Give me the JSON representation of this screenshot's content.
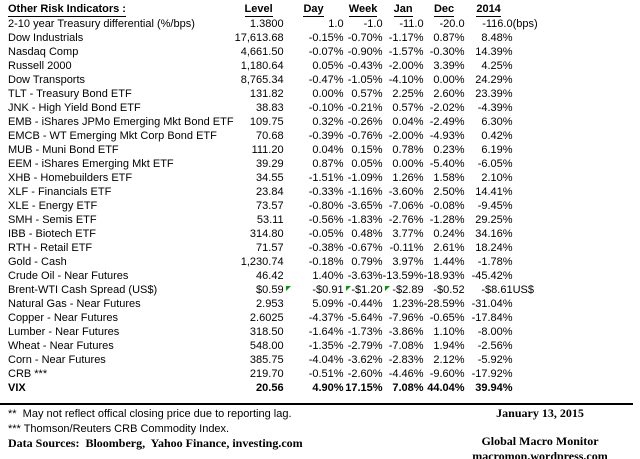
{
  "table": {
    "title": "Other Risk Indicators :",
    "columns": [
      "Level",
      "Day",
      "Week",
      "Jan",
      "Dec",
      "2014"
    ],
    "rows": [
      {
        "label": "2-10 year Treasury differential (%/bps)",
        "values": [
          "1.3800",
          "1.0",
          "-1.0",
          "-11.0",
          "-20.0",
          "-116.0"
        ],
        "note": "(bps)",
        "plain_numbers": true
      },
      {
        "label": "Dow Industrials",
        "values": [
          "17,613.68",
          "-0.15%",
          "-0.70%",
          "-1.17%",
          "0.87%",
          "8.48%"
        ],
        "note": ""
      },
      {
        "label": "Nasdaq Comp",
        "values": [
          "4,661.50",
          "-0.07%",
          "-0.90%",
          "-1.57%",
          "-0.30%",
          "14.39%"
        ],
        "note": ""
      },
      {
        "label": "Russell 2000",
        "values": [
          "1,180.64",
          "0.05%",
          "-0.43%",
          "-2.00%",
          "3.39%",
          "4.25%"
        ],
        "note": ""
      },
      {
        "label": "Dow Transports",
        "values": [
          "8,765.34",
          "-0.47%",
          "-1.05%",
          "-4.10%",
          "0.00%",
          "24.29%"
        ],
        "note": ""
      },
      {
        "label": "TLT - Treasury Bond ETF",
        "values": [
          "131.82",
          "0.00%",
          "0.57%",
          "2.25%",
          "2.60%",
          "23.39%"
        ],
        "note": ""
      },
      {
        "label": "JNK - High Yield Bond ETF",
        "values": [
          "38.83",
          "-0.10%",
          "-0.21%",
          "0.57%",
          "-2.02%",
          "-4.39%"
        ],
        "note": ""
      },
      {
        "label": "EMB - iShares JPMo Emerging Mkt Bond ETF",
        "values": [
          "109.75",
          "0.32%",
          "-0.26%",
          "0.04%",
          "-2.49%",
          "6.30%"
        ],
        "note": ""
      },
      {
        "label": "EMCB - WT Emerging Mkt Corp Bond ETF",
        "values": [
          "70.68",
          "-0.39%",
          "-0.76%",
          "-2.00%",
          "-4.93%",
          "0.42%"
        ],
        "note": ""
      },
      {
        "label": "MUB - Muni Bond ETF",
        "values": [
          "111.20",
          "0.04%",
          "0.15%",
          "0.78%",
          "0.23%",
          "6.19%"
        ],
        "note": ""
      },
      {
        "label": "EEM - iShares Emerging Mkt ETF",
        "values": [
          "39.29",
          "0.87%",
          "0.05%",
          "0.00%",
          "-5.40%",
          "-6.05%"
        ],
        "note": ""
      },
      {
        "label": "XHB - Homebuilders ETF",
        "values": [
          "34.55",
          "-1.51%",
          "-1.09%",
          "1.26%",
          "1.58%",
          "2.10%"
        ],
        "note": ""
      },
      {
        "label": "XLF - Financials ETF",
        "values": [
          "23.84",
          "-0.33%",
          "-1.16%",
          "-3.60%",
          "2.50%",
          "14.41%"
        ],
        "note": ""
      },
      {
        "label": "XLE - Energy ETF",
        "values": [
          "73.57",
          "-0.80%",
          "-3.65%",
          "-7.06%",
          "-0.08%",
          "-9.45%"
        ],
        "note": ""
      },
      {
        "label": "SMH - Semis ETF",
        "values": [
          "53.11",
          "-0.56%",
          "-1.83%",
          "-2.76%",
          "-1.28%",
          "29.25%"
        ],
        "note": ""
      },
      {
        "label": "IBB - Biotech ETF",
        "values": [
          "314.80",
          "-0.05%",
          "0.48%",
          "3.77%",
          "0.24%",
          "34.16%"
        ],
        "note": ""
      },
      {
        "label": "RTH - Retail ETF",
        "values": [
          "71.57",
          "-0.38%",
          "-0.67%",
          "-0.11%",
          "2.61%",
          "18.24%"
        ],
        "note": ""
      },
      {
        "label": "Gold - Cash",
        "values": [
          "1,230.74",
          "-0.18%",
          "0.79%",
          "3.97%",
          "1.44%",
          "-1.78%"
        ],
        "note": ""
      },
      {
        "label": "Crude Oil - Near Futures",
        "values": [
          "46.42",
          "1.40%",
          "-3.63%",
          "-13.59%",
          "-18.93%",
          "-45.42%"
        ],
        "note": ""
      },
      {
        "label": "Brent-WTI Cash Spread (US$)",
        "values": [
          "$0.59",
          "-$0.91",
          "-$1.20",
          "-$2.89",
          "-$0.52",
          "-$8.61"
        ],
        "note": "US$",
        "flagged": [
          1,
          2,
          3
        ]
      },
      {
        "label": "Natural Gas - Near Futures",
        "values": [
          "2.953",
          "5.09%",
          "-0.44%",
          "1.23%",
          "-28.59%",
          "-31.04%"
        ],
        "note": ""
      },
      {
        "label": "Copper - Near Futures",
        "values": [
          "2.6025",
          "-4.37%",
          "-5.64%",
          "-7.96%",
          "-0.65%",
          "-17.84%"
        ],
        "note": ""
      },
      {
        "label": "Lumber - Near Futures",
        "values": [
          "318.50",
          "-1.64%",
          "-1.73%",
          "-3.86%",
          "1.10%",
          "-8.00%"
        ],
        "note": ""
      },
      {
        "label": "Wheat - Near Futures",
        "values": [
          "548.00",
          "-1.35%",
          "-2.79%",
          "-7.08%",
          "1.94%",
          "-2.56%"
        ],
        "note": ""
      },
      {
        "label": "Corn - Near Futures",
        "values": [
          "385.75",
          "-4.04%",
          "-3.62%",
          "-2.83%",
          "2.12%",
          "-5.92%"
        ],
        "note": ""
      },
      {
        "label": "CRB ***",
        "values": [
          "219.70",
          "-0.51%",
          "-2.60%",
          "-4.46%",
          "-9.60%",
          "-17.92%"
        ],
        "note": ""
      },
      {
        "label": "VIX",
        "values": [
          "20.56",
          "4.90%",
          "17.15%",
          "7.08%",
          "44.04%",
          "39.94%"
        ],
        "note": "",
        "bold": true
      }
    ]
  },
  "footer": {
    "footnote_reporting_lag": "**  May not reflect offical closing price due to reporting lag.",
    "footnote_crb": "*** Thomson/Reuters CRB Commodity Index.",
    "data_sources": "Data Sources:  Bloomberg,  Yahoo Finance, investing.com",
    "date": "January 13, 2015",
    "brand": "Global Macro Monitor",
    "url": "macromon.wordpress.com"
  },
  "colors": {
    "flag_green": "#00A000",
    "text": "#000000"
  }
}
